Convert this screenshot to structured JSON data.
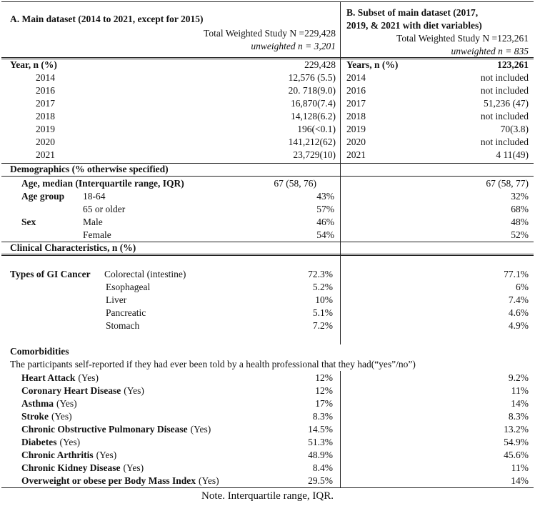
{
  "header": {
    "left": {
      "title": "A. Main dataset (2014 to 2021, except for 2015)",
      "total": "Total Weighted Study N =229,428",
      "unweighted": "unweighted n = 3,201"
    },
    "right": {
      "title_lines": [
        "B. Subset of main dataset (2017,",
        "2019, & 2021 with diet variables)"
      ],
      "total": "Total Weighted Study N =123,261",
      "unweighted": "unweighted n = 835"
    }
  },
  "years": {
    "label_a": "Year, n (%)",
    "total_a": "229,428",
    "label_b": "Years, n (%)",
    "total_b": "123,261",
    "rows": [
      [
        "2014",
        "12,576 (5.5)",
        "2014",
        "not included"
      ],
      [
        "2016",
        "20. 718(9.0)",
        "2016",
        "not included"
      ],
      [
        "2017",
        "16,870(7.4)",
        "2017",
        "51,236 (47)"
      ],
      [
        "2018",
        "14,128(6.2)",
        "2018",
        "not included"
      ],
      [
        "2019",
        "196(<0.1)",
        "2019",
        "70(3.8)"
      ],
      [
        "2020",
        "141,212(62)",
        "2020",
        "not included"
      ],
      [
        "2021",
        "23,729(10)",
        "2021",
        "4 11(49)"
      ]
    ]
  },
  "demographics": {
    "title": "Demographics (% otherwise specified)",
    "age_median": {
      "label": "Age, median (Interquartile range, IQR)",
      "a": "67 (58, 76)",
      "b": "67 (58, 77)"
    },
    "groups": [
      {
        "label": "Age group",
        "rows": [
          [
            "18-64",
            "43%",
            "32%"
          ],
          [
            "65 or older",
            "57%",
            "68%"
          ]
        ]
      },
      {
        "label": "Sex",
        "rows": [
          [
            "Male",
            "46%",
            "48%"
          ],
          [
            "Female",
            "54%",
            "52%"
          ]
        ]
      }
    ]
  },
  "clinical": {
    "title": "Clinical Characteristics, n (%)",
    "group": "Types of GI Cancer",
    "rows": [
      [
        "Colorectal (intestine)",
        "72.3%",
        "77.1%"
      ],
      [
        "Esophageal",
        "5.2%",
        "6%"
      ],
      [
        "Liver",
        "10%",
        "7.4%"
      ],
      [
        "Pancreatic",
        "5.1%",
        "4.6%"
      ],
      [
        "Stomach",
        "7.2%",
        "4.9%"
      ]
    ]
  },
  "comorbidities": {
    "title": "Comorbidities",
    "description": "The participants self-reported if they had ever been told by a health professional that they had(“yes”/no”)",
    "rows": [
      [
        "Heart Attack",
        "(Yes)",
        "12%",
        "9.2%"
      ],
      [
        "Coronary Heart Disease",
        "(Yes)",
        "12%",
        "11%"
      ],
      [
        "Asthma",
        "(Yes)",
        "17%",
        "14%"
      ],
      [
        "Stroke",
        "(Yes)",
        "8.3%",
        "8.3%"
      ],
      [
        "Chronic Obstructive Pulmonary Disease",
        "(Yes)",
        "14.5%",
        "13.2%"
      ],
      [
        "Diabetes",
        "(Yes)",
        "51.3%",
        "54.9%"
      ],
      [
        "Chronic Arthritis",
        "(Yes)",
        "48.9%",
        "45.6%"
      ],
      [
        "Chronic Kidney Disease",
        "(Yes)",
        "8.4%",
        "11%"
      ],
      [
        "Overweight or obese per Body Mass Index",
        "(Yes)",
        "29.5%",
        "14%"
      ]
    ]
  },
  "note": "Note. Interquartile range, IQR."
}
